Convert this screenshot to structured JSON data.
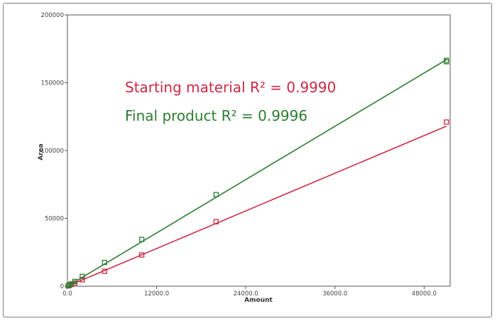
{
  "chart_data": {
    "type": "scatter",
    "xlabel": "Amount",
    "ylabel": "Area",
    "xlim": [
      0,
      51500
    ],
    "ylim": [
      0,
      200000
    ],
    "x_ticks": [
      0,
      12000,
      24000,
      36000,
      48000
    ],
    "x_tick_labels": [
      "0.0",
      "12000.0",
      "24000.0",
      "36000.0",
      "48000.0"
    ],
    "y_ticks": [
      0,
      50000,
      100000,
      150000,
      200000
    ],
    "y_tick_labels": [
      "0",
      "50000",
      "100000",
      "150000",
      "200000"
    ],
    "grid": false,
    "annotations": [
      {
        "text": "Starting material R² = 0.9990",
        "color": "#cc2a45"
      },
      {
        "text": "Final product R² = 0.9996",
        "color": "#2e7d32"
      }
    ],
    "series": [
      {
        "color": "#cc2a45",
        "marker": "square",
        "fit": "linear",
        "x": [
          100,
          250,
          500,
          1000,
          2000,
          5000,
          10000,
          20000,
          51000
        ],
        "y": [
          250,
          600,
          1200,
          2400,
          4700,
          11000,
          23000,
          47500,
          121000
        ],
        "fit_line": {
          "x": [
            0,
            51000
          ],
          "y": [
            0,
            118000
          ]
        }
      },
      {
        "color": "#2e7d32",
        "marker": "square",
        "fit": "linear",
        "x": [
          100,
          250,
          500,
          1000,
          2000,
          5000,
          10000,
          20000,
          51000,
          51000
        ],
        "y": [
          350,
          850,
          1700,
          3500,
          7200,
          17500,
          34500,
          67500,
          165500,
          166500
        ],
        "fit_line": {
          "x": [
            0,
            51000
          ],
          "y": [
            0,
            167000
          ]
        }
      }
    ]
  }
}
